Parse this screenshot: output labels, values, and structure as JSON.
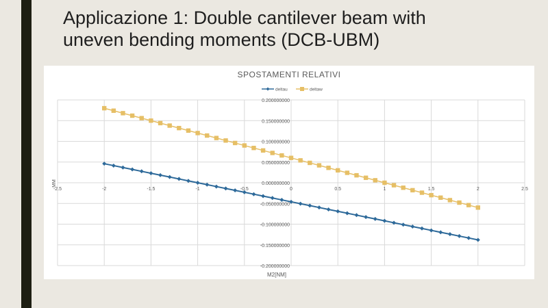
{
  "slide": {
    "title_line1": "Applicazione 1: Double cantilever beam with",
    "title_line2": "uneven bending moments (DCB-UBM)"
  },
  "chart_data": {
    "type": "scatter",
    "title": "SPOSTAMENTI RELATIVI",
    "xlabel": "M2[NM]",
    "ylabel": "MM",
    "xlim": [
      -2.5,
      2.5
    ],
    "ylim": [
      -0.2,
      0.2
    ],
    "x_ticks": [
      "-2.5",
      "-2",
      "-1.5",
      "-1",
      "-0.5",
      "0",
      "0.5",
      "1",
      "1.5",
      "2",
      "2.5"
    ],
    "y_ticks": [
      "0.200000000",
      "0.150000000",
      "0.100000000",
      "0.050000000",
      "0.000000000",
      "-0.050000000",
      "-0.100000000",
      "-0.150000000",
      "-0.200000000"
    ],
    "grid": true,
    "legend_position": "top",
    "x": [
      -2,
      -1.9,
      -1.8,
      -1.7,
      -1.6,
      -1.5,
      -1.4,
      -1.3,
      -1.2,
      -1.1,
      -1,
      -0.9,
      -0.8,
      -0.7,
      -0.6,
      -0.5,
      -0.4,
      -0.3,
      -0.2,
      -0.1,
      0,
      0.1,
      0.2,
      0.3,
      0.4,
      0.5,
      0.6,
      0.7,
      0.8,
      0.9,
      1,
      1.1,
      1.2,
      1.3,
      1.4,
      1.5,
      1.6,
      1.7,
      1.8,
      1.9,
      2
    ],
    "series": [
      {
        "name": "deltau",
        "color": "#2e6a9a",
        "marker": "diamond",
        "slope": -0.046,
        "intercept": -0.046
      },
      {
        "name": "deltaw",
        "color": "#e6bf66",
        "marker": "square",
        "slope": -0.06,
        "intercept": 0.06
      }
    ]
  }
}
